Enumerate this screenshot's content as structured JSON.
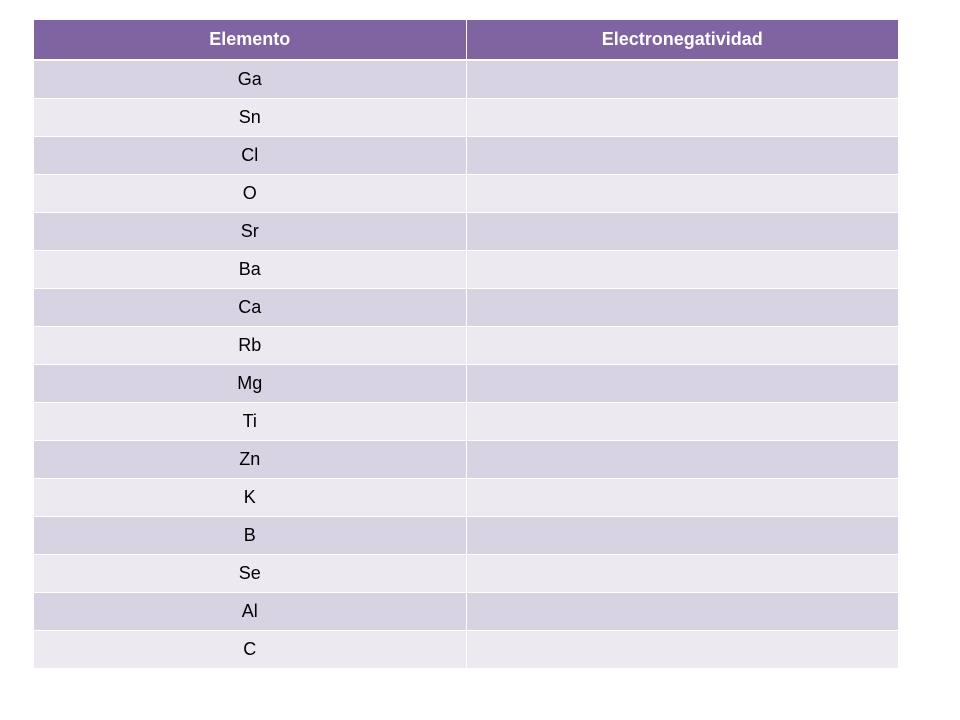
{
  "table": {
    "headers": [
      "Elemento",
      "Electronegatividad"
    ],
    "rows": [
      [
        "Ga",
        ""
      ],
      [
        "Sn",
        ""
      ],
      [
        "Cl",
        ""
      ],
      [
        "O",
        ""
      ],
      [
        "Sr",
        ""
      ],
      [
        "Ba",
        ""
      ],
      [
        "Ca",
        ""
      ],
      [
        "Rb",
        ""
      ],
      [
        "Mg",
        ""
      ],
      [
        "Ti",
        ""
      ],
      [
        "Zn",
        ""
      ],
      [
        "K",
        ""
      ],
      [
        "B",
        ""
      ],
      [
        "Se",
        ""
      ],
      [
        "Al",
        ""
      ],
      [
        "C",
        ""
      ]
    ]
  },
  "colors": {
    "header_bg": "#8064a2",
    "header_text": "#ffffff",
    "row_odd": "#d7d3e2",
    "row_even": "#ece9f0"
  }
}
